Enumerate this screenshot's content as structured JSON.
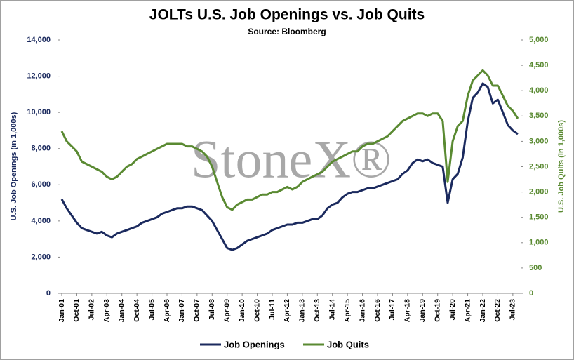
{
  "chart_data": {
    "type": "line",
    "title": "JOLTs U.S. Job Openings vs. Job Quits",
    "subtitle": "Source: Bloomberg",
    "watermark": "StoneX®",
    "y_label": "U.S. Job Openings (in 1,000s)",
    "y2_label": "U.S. Job Quits (in 1,000s)",
    "categories": [
      "Jan-01",
      null,
      null,
      "Oct-01",
      null,
      null,
      "Jul-02",
      null,
      null,
      "Apr-03",
      null,
      null,
      "Jan-04",
      null,
      null,
      "Oct-04",
      null,
      null,
      "Jul-05",
      null,
      null,
      "Apr-06",
      null,
      null,
      "Jan-07",
      null,
      null,
      "Oct-07",
      null,
      null,
      "Jul-08",
      null,
      null,
      "Apr-09",
      null,
      null,
      "Jan-10",
      null,
      null,
      "Oct-10",
      null,
      null,
      "Jul-11",
      null,
      null,
      "Apr-12",
      null,
      null,
      "Jan-13",
      null,
      null,
      "Oct-13",
      null,
      null,
      "Jul-14",
      null,
      null,
      "Apr-15",
      null,
      null,
      "Jan-16",
      null,
      null,
      "Oct-16",
      null,
      null,
      "Jul-17",
      null,
      null,
      "Apr-18",
      null,
      null,
      "Jan-19",
      null,
      null,
      "Oct-19",
      null,
      null,
      "Jul-20",
      null,
      null,
      "Apr-21",
      null,
      null,
      "Jan-22",
      null,
      null,
      "Oct-22",
      null,
      null,
      "Jul-23",
      null
    ],
    "series": [
      {
        "name": "Job Openings",
        "color": "#1b2a5e",
        "axis": "y",
        "values": [
          5200,
          4700,
          4300,
          3900,
          3600,
          3500,
          3400,
          3300,
          3400,
          3200,
          3100,
          3300,
          3400,
          3500,
          3600,
          3700,
          3900,
          4000,
          4100,
          4200,
          4400,
          4500,
          4600,
          4700,
          4700,
          4800,
          4800,
          4700,
          4600,
          4300,
          4000,
          3500,
          3000,
          2500,
          2400,
          2500,
          2700,
          2900,
          3000,
          3100,
          3200,
          3300,
          3500,
          3600,
          3700,
          3800,
          3800,
          3900,
          3900,
          4000,
          4100,
          4100,
          4300,
          4700,
          4900,
          5000,
          5300,
          5500,
          5600,
          5600,
          5700,
          5800,
          5800,
          5900,
          6000,
          6100,
          6200,
          6300,
          6600,
          6800,
          7200,
          7400,
          7300,
          7400,
          7200,
          7100,
          7000,
          5000,
          6300,
          6600,
          7500,
          9500,
          10800,
          11100,
          11600,
          11400,
          10500,
          10700,
          10000,
          9300,
          9000,
          8800
        ]
      },
      {
        "name": "Job Quits",
        "color": "#5a8a32",
        "axis": "y2",
        "values": [
          3200,
          3000,
          2900,
          2800,
          2600,
          2550,
          2500,
          2450,
          2400,
          2300,
          2250,
          2300,
          2400,
          2500,
          2550,
          2650,
          2700,
          2750,
          2800,
          2850,
          2900,
          2950,
          2950,
          2950,
          2950,
          2900,
          2900,
          2850,
          2800,
          2700,
          2500,
          2200,
          1900,
          1700,
          1650,
          1750,
          1800,
          1850,
          1850,
          1900,
          1950,
          1950,
          2000,
          2000,
          2050,
          2100,
          2050,
          2100,
          2200,
          2250,
          2300,
          2350,
          2400,
          2500,
          2600,
          2650,
          2700,
          2750,
          2800,
          2800,
          2900,
          2950,
          2950,
          3000,
          3050,
          3100,
          3200,
          3300,
          3400,
          3450,
          3500,
          3550,
          3550,
          3500,
          3550,
          3550,
          3400,
          2200,
          3000,
          3300,
          3400,
          3900,
          4200,
          4300,
          4400,
          4300,
          4100,
          4100,
          3900,
          3700,
          3600,
          3450
        ]
      }
    ],
    "ylim": [
      0,
      14000
    ],
    "yticks": [
      0,
      {
        "value": 2000,
        "label": "2,000"
      },
      {
        "value": 4000,
        "label": "4,000"
      },
      {
        "value": 6000,
        "label": "6,000"
      },
      {
        "value": 8000,
        "label": "8,000"
      },
      {
        "value": 10000,
        "label": "10,000"
      },
      {
        "value": 12000,
        "label": "12,000"
      },
      {
        "value": 14000,
        "label": "14,000"
      }
    ],
    "y2lim": [
      0,
      5000
    ],
    "y2ticks": [
      0,
      500,
      {
        "value": 1000,
        "label": "1,000"
      },
      {
        "value": 1500,
        "label": "1,500"
      },
      {
        "value": 2000,
        "label": "2,000"
      },
      {
        "value": 2500,
        "label": "2,500"
      },
      {
        "value": 3000,
        "label": "3,000"
      },
      {
        "value": 3500,
        "label": "3,500"
      },
      {
        "value": 4000,
        "label": "4,000"
      },
      {
        "value": 4500,
        "label": "4,500"
      },
      {
        "value": 5000,
        "label": "5,000"
      }
    ],
    "grid": false,
    "legend": "bottom"
  }
}
